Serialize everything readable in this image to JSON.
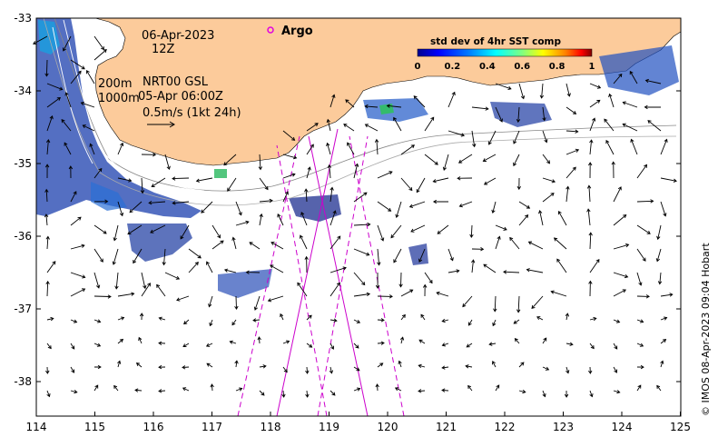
{
  "colors": {
    "land": "#fccb9b",
    "ocean": "#ffffff",
    "argo_marker": "#e000e0",
    "tracks": "#cc00cc"
  },
  "axes": {
    "x_ticks": [
      "114",
      "115",
      "116",
      "117",
      "118",
      "119",
      "120",
      "121",
      "122",
      "123",
      "124",
      "125"
    ],
    "y_ticks": [
      "-33",
      "-34",
      "-35",
      "-36",
      "-37",
      "-38"
    ]
  },
  "annotations": {
    "date": "06-Apr-2023",
    "hour": "12Z",
    "depth_200": "200m",
    "depth_1000": "1000m",
    "product": "NRT00 GSL",
    "product_time": "05-Apr 06:00Z",
    "scale_arrow": "0.5m/s (1kt 24h)"
  },
  "legend": {
    "argo_label": "Argo",
    "colorbar_title": "std dev of 4hr SST comp",
    "colorbar_ticks": [
      "0",
      "0.2",
      "0.4",
      "0.6",
      "0.8",
      "1"
    ],
    "colorbar_colors": [
      "#00008f",
      "#0000ff",
      "#0080ff",
      "#00ffff",
      "#80ff80",
      "#ffff00",
      "#ff8000",
      "#ff0000",
      "#800000"
    ]
  },
  "credit": "© IMOS 08-Apr-2023 09:04 Hobart"
}
